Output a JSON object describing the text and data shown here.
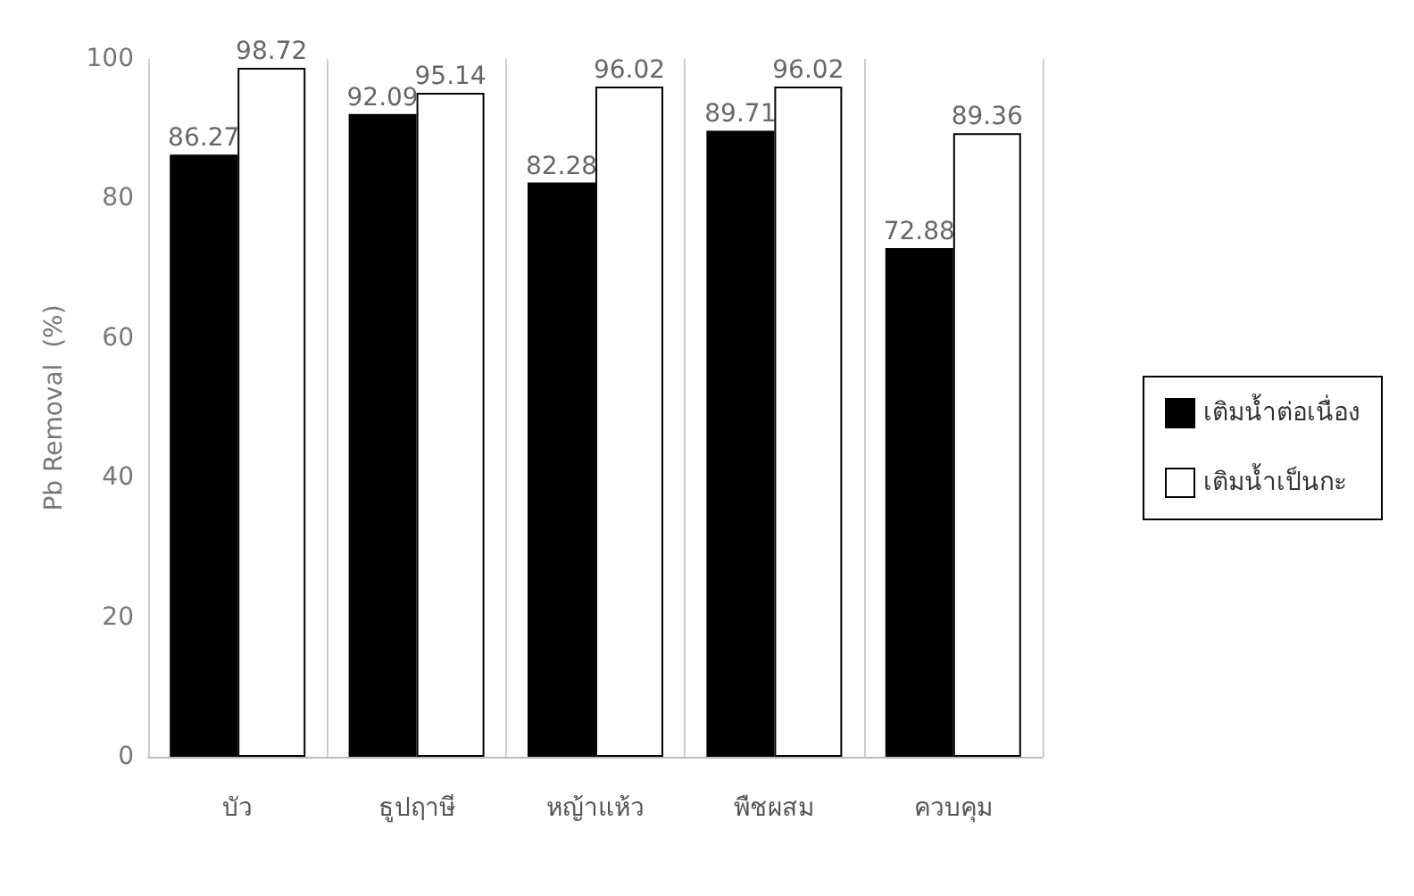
{
  "chart_data": {
    "type": "bar",
    "ylabel": "Pb Removal  (%)",
    "categories": [
      "บัว",
      "ธูปฤาษี",
      "หญ้าแห้ว",
      "พืชผสม",
      "ควบคุม"
    ],
    "series": [
      {
        "name": "เติมน้ำต่อเนื่อง",
        "color": "#000000",
        "values": [
          86.27,
          92.09,
          82.28,
          89.71,
          72.88
        ]
      },
      {
        "name": "เติมน้ำเป็นกะ",
        "color": "#ffffff",
        "values": [
          98.72,
          95.14,
          96.02,
          96.02,
          89.36
        ]
      }
    ],
    "ylim": [
      0,
      100
    ],
    "yticks": [
      0,
      20,
      40,
      60,
      80,
      100
    ],
    "grid": "x",
    "legend": "right",
    "data_labels": true
  }
}
